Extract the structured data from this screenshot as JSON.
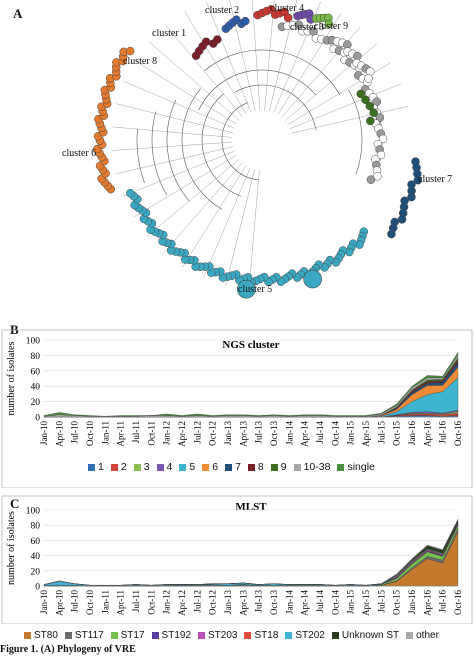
{
  "panels": {
    "a": "A",
    "b": "B",
    "c": "C"
  },
  "tree": {
    "clusters": [
      {
        "label": "cluster 1",
        "color": "#2f5ca8"
      },
      {
        "label": "cluster 2",
        "color": "#c8382f"
      },
      {
        "label": "cluster 3",
        "color": "#7ab84a"
      },
      {
        "label": "cluster 4",
        "color": "#6f4aa8"
      },
      {
        "label": "cluster 5",
        "color": "#3aa8c3"
      },
      {
        "label": "cluster 6",
        "color": "#e37a2d"
      },
      {
        "label": "cluster 7",
        "color": "#1f4e79"
      },
      {
        "label": "cluster 8",
        "color": "#7a1f28"
      },
      {
        "label": "cluster 9",
        "color": "#3c6e1f"
      }
    ]
  },
  "chart_data": [
    {
      "type": "area",
      "title": "NGS cluster",
      "ylabel": "number of isolates",
      "ylim": [
        0,
        100
      ],
      "yticks": [
        0,
        20,
        40,
        60,
        80,
        100
      ],
      "x": [
        "Jan-10",
        "Apr-10",
        "Jul-10",
        "Oct-10",
        "Jan-11",
        "Apr-11",
        "Jul-11",
        "Oct-11",
        "Jan-12",
        "Apr-12",
        "Jul-12",
        "Oct-12",
        "Jan-13",
        "Apr-13",
        "Jul-13",
        "Oct-13",
        "Jan-14",
        "Apr-14",
        "Jul-14",
        "Oct-14",
        "Jan-15",
        "Apr-15",
        "Jul-15",
        "Oct-15",
        "Jan-16",
        "Apr-16",
        "Jul-16",
        "Oct-16"
      ],
      "series": [
        {
          "name": "1",
          "color": "#2f6db5",
          "values": [
            0,
            0,
            0,
            0,
            0,
            0,
            0,
            0,
            0,
            0,
            0,
            0,
            0,
            0,
            0,
            0,
            0,
            0,
            0,
            0,
            0,
            0,
            0,
            1,
            2,
            2,
            1,
            2
          ]
        },
        {
          "name": "2",
          "color": "#d1453b",
          "values": [
            0,
            0,
            0,
            0,
            0,
            0,
            0,
            0,
            0,
            0,
            0,
            0,
            0,
            0,
            0,
            0,
            0,
            0,
            0,
            0,
            0,
            0,
            0,
            1,
            2,
            2,
            2,
            3
          ]
        },
        {
          "name": "3",
          "color": "#8cc152",
          "values": [
            0,
            0,
            0,
            0,
            0,
            0,
            0,
            0,
            0,
            0,
            0,
            0,
            0,
            0,
            0,
            0,
            0,
            0,
            0,
            0,
            0,
            0,
            0,
            0,
            1,
            1,
            1,
            2
          ]
        },
        {
          "name": "4",
          "color": "#7b57b5",
          "values": [
            0,
            0,
            0,
            0,
            0,
            0,
            0,
            0,
            0,
            0,
            0,
            0,
            0,
            0,
            0,
            0,
            0,
            0,
            0,
            0,
            0,
            0,
            0,
            1,
            1,
            2,
            1,
            2
          ]
        },
        {
          "name": "5",
          "color": "#3fb4cf",
          "values": [
            0,
            0,
            0,
            0,
            0,
            0,
            0,
            0,
            0,
            0,
            0,
            0,
            0,
            0,
            0,
            0,
            0,
            0,
            0,
            0,
            0,
            0,
            1,
            4,
            14,
            22,
            28,
            42
          ]
        },
        {
          "name": "6",
          "color": "#ef8a35",
          "values": [
            0,
            0,
            0,
            0,
            0,
            0,
            0,
            0,
            0,
            0,
            0,
            0,
            0,
            0,
            0,
            0,
            0,
            0,
            0,
            0,
            0,
            0,
            1,
            3,
            9,
            12,
            8,
            14
          ]
        },
        {
          "name": "7",
          "color": "#1f4e79",
          "values": [
            0,
            0,
            0,
            0,
            0,
            0,
            0,
            0,
            0,
            0,
            0,
            0,
            0,
            0,
            0,
            0,
            0,
            0,
            0,
            0,
            0,
            0,
            0,
            1,
            3,
            3,
            4,
            6
          ]
        },
        {
          "name": "8",
          "color": "#7a1f28",
          "values": [
            0,
            0,
            0,
            0,
            0,
            0,
            0,
            0,
            0,
            0,
            0,
            0,
            0,
            0,
            0,
            0,
            0,
            0,
            0,
            0,
            0,
            0,
            0,
            1,
            2,
            2,
            2,
            3
          ]
        },
        {
          "name": "9",
          "color": "#3c6e1f",
          "values": [
            0,
            0,
            0,
            0,
            0,
            0,
            0,
            0,
            0,
            0,
            0,
            0,
            0,
            0,
            0,
            0,
            0,
            0,
            0,
            0,
            0,
            0,
            0,
            1,
            1,
            2,
            2,
            3
          ]
        },
        {
          "name": "10-38",
          "color": "#a6a6a6",
          "values": [
            1,
            3,
            2,
            1,
            1,
            1,
            1,
            2,
            2,
            1,
            2,
            1,
            2,
            2,
            1,
            2,
            1,
            2,
            2,
            1,
            1,
            1,
            2,
            2,
            3,
            3,
            2,
            4
          ]
        },
        {
          "name": "single",
          "color": "#4a8f3c",
          "values": [
            1,
            3,
            1,
            1,
            0,
            1,
            1,
            0,
            2,
            1,
            2,
            1,
            1,
            1,
            1,
            1,
            1,
            1,
            1,
            1,
            1,
            1,
            1,
            2,
            2,
            3,
            2,
            3
          ]
        }
      ]
    },
    {
      "type": "area",
      "title": "MLST",
      "ylabel": "number of isolates",
      "ylim": [
        0,
        100
      ],
      "yticks": [
        0,
        20,
        40,
        60,
        80,
        100
      ],
      "x": [
        "Jan-10",
        "Apr-10",
        "Jul-10",
        "Oct-10",
        "Jan-11",
        "Apr-11",
        "Jul-11",
        "Oct-11",
        "Jan-12",
        "Apr-12",
        "Jul-12",
        "Oct-12",
        "Jan-13",
        "Apr-13",
        "Jul-13",
        "Oct-13",
        "Jan-14",
        "Apr-14",
        "Jul-14",
        "Oct-14",
        "Jan-15",
        "Apr-15",
        "Jul-15",
        "Oct-15",
        "Jan-16",
        "Apr-16",
        "Jul-16",
        "Oct-16"
      ],
      "series": [
        {
          "name": "ST80",
          "color": "#c47a2c",
          "values": [
            0,
            0,
            0,
            0,
            0,
            0,
            0,
            0,
            0,
            0,
            0,
            0,
            0,
            0,
            0,
            0,
            0,
            0,
            0,
            0,
            0,
            0,
            1,
            6,
            22,
            36,
            30,
            72
          ]
        },
        {
          "name": "ST117",
          "color": "#6a6a6a",
          "values": [
            0,
            0,
            0,
            0,
            0,
            0,
            0,
            0,
            0,
            0,
            0,
            0,
            0,
            0,
            0,
            0,
            0,
            0,
            0,
            0,
            0,
            0,
            0,
            1,
            2,
            3,
            4,
            4
          ]
        },
        {
          "name": "ST17",
          "color": "#74c04d",
          "values": [
            1,
            1,
            1,
            0,
            0,
            0,
            1,
            0,
            1,
            0,
            1,
            1,
            1,
            1,
            1,
            1,
            1,
            1,
            1,
            0,
            1,
            0,
            1,
            3,
            5,
            6,
            5,
            4
          ]
        },
        {
          "name": "ST192",
          "color": "#5a3e9e",
          "values": [
            0,
            0,
            0,
            0,
            0,
            0,
            0,
            0,
            0,
            1,
            0,
            1,
            0,
            1,
            0,
            0,
            0,
            0,
            0,
            0,
            0,
            0,
            0,
            1,
            1,
            1,
            1,
            1
          ]
        },
        {
          "name": "ST203",
          "color": "#b74fb5",
          "values": [
            0,
            0,
            0,
            0,
            0,
            0,
            0,
            0,
            0,
            0,
            0,
            0,
            0,
            0,
            0,
            0,
            0,
            0,
            0,
            0,
            0,
            0,
            0,
            1,
            1,
            1,
            1,
            1
          ]
        },
        {
          "name": "ST18",
          "color": "#e04b3f",
          "values": [
            0,
            0,
            0,
            0,
            0,
            0,
            0,
            0,
            0,
            0,
            0,
            0,
            0,
            0,
            0,
            0,
            0,
            0,
            0,
            0,
            0,
            0,
            0,
            1,
            1,
            1,
            1,
            1
          ]
        },
        {
          "name": "ST202",
          "color": "#3fb4d8",
          "values": [
            1,
            5,
            2,
            1,
            1,
            1,
            1,
            1,
            1,
            1,
            1,
            1,
            2,
            2,
            1,
            2,
            1,
            1,
            1,
            1,
            1,
            1,
            1,
            1,
            1,
            1,
            1,
            1
          ]
        },
        {
          "name": "Unknown ST",
          "color": "#2a3d1e",
          "values": [
            0,
            0,
            0,
            0,
            0,
            0,
            0,
            0,
            0,
            0,
            0,
            0,
            0,
            0,
            0,
            0,
            0,
            0,
            0,
            0,
            0,
            0,
            0,
            1,
            2,
            4,
            4,
            3
          ]
        },
        {
          "name": "other",
          "color": "#a9a9a9",
          "values": [
            0,
            1,
            0,
            0,
            0,
            0,
            0,
            0,
            0,
            0,
            0,
            0,
            0,
            0,
            0,
            0,
            0,
            0,
            0,
            0,
            0,
            0,
            0,
            1,
            1,
            1,
            1,
            1
          ]
        }
      ]
    }
  ],
  "caption": "Figure 1. (A) Phylogeny of VRE "
}
